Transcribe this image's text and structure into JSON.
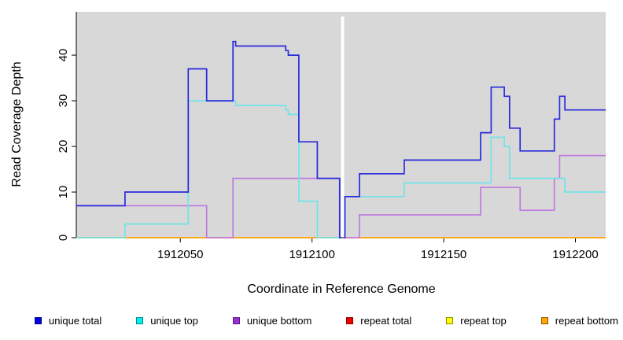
{
  "chart_data": {
    "type": "line",
    "step": true,
    "title": "",
    "xlabel": "Coordinate in Reference Genome",
    "ylabel": "Read Coverage Depth",
    "xlim": [
      1912010.5,
      1912211.5
    ],
    "ylim": [
      0,
      49.5
    ],
    "x_ticks": [
      1912050,
      1912100,
      1912150,
      1912200
    ],
    "y_ticks": [
      0,
      10,
      20,
      30,
      40
    ],
    "grid": false,
    "plot_bg": "#D8D8D8",
    "gap": {
      "from": 1912111,
      "to": 1912112.2,
      "note": "white no-data band"
    },
    "series": [
      {
        "name": "repeat-total",
        "label": "repeat total",
        "color": "#E03030",
        "sections": [
          [
            [
              1912010.5,
              0
            ],
            [
              1912111,
              0
            ]
          ],
          [
            [
              1912112.2,
              0
            ],
            [
              1912211.5,
              0
            ]
          ]
        ]
      },
      {
        "name": "repeat-top",
        "label": "repeat top",
        "color": "#F5F500",
        "sections": [
          [
            [
              1912010.5,
              0
            ],
            [
              1912111,
              0
            ]
          ],
          [
            [
              1912112.2,
              0
            ],
            [
              1912211.5,
              0
            ]
          ]
        ]
      },
      {
        "name": "repeat-bottom",
        "label": "repeat bottom",
        "color": "#FFA41E",
        "sections": [
          [
            [
              1912010.5,
              0
            ],
            [
              1912111,
              0
            ]
          ],
          [
            [
              1912112.2,
              0
            ],
            [
              1912211.5,
              0
            ]
          ]
        ]
      },
      {
        "name": "unique-bottom",
        "label": "unique bottom",
        "color": "#BE7CDE",
        "sections": [
          [
            [
              1912010.5,
              7
            ],
            [
              1912060,
              0
            ],
            [
              1912070,
              13
            ],
            [
              1912110.5,
              0
            ],
            [
              1912111,
              0
            ]
          ],
          [
            [
              1912112.2,
              0
            ],
            [
              1912118,
              5
            ],
            [
              1912164,
              11
            ],
            [
              1912179,
              6
            ],
            [
              1912192,
              13
            ],
            [
              1912194,
              18
            ],
            [
              1912211.5,
              18
            ]
          ]
        ]
      },
      {
        "name": "unique-top",
        "label": "unique top",
        "color": "#70E4E8",
        "sections": [
          [
            [
              1912010.5,
              0
            ],
            [
              1912029,
              3
            ],
            [
              1912053,
              30
            ],
            [
              1912071,
              29
            ],
            [
              1912090,
              28
            ],
            [
              1912091,
              27
            ],
            [
              1912095,
              8
            ],
            [
              1912102,
              0
            ],
            [
              1912111,
              0
            ]
          ],
          [
            [
              1912112.2,
              0
            ],
            [
              1912112.5,
              9
            ],
            [
              1912135,
              12
            ],
            [
              1912168,
              22
            ],
            [
              1912173,
              20
            ],
            [
              1912175,
              13
            ],
            [
              1912196,
              10
            ],
            [
              1912211.5,
              10
            ]
          ]
        ]
      },
      {
        "name": "unique-total",
        "label": "unique total",
        "color": "#2A2ADC",
        "sections": [
          [
            [
              1912010.5,
              7
            ],
            [
              1912029,
              10
            ],
            [
              1912053,
              37
            ],
            [
              1912060,
              30
            ],
            [
              1912070,
              43
            ],
            [
              1912071,
              42
            ],
            [
              1912090,
              41
            ],
            [
              1912091,
              40
            ],
            [
              1912095,
              21
            ],
            [
              1912102,
              13
            ],
            [
              1912110.5,
              0
            ],
            [
              1912111,
              0
            ]
          ],
          [
            [
              1912112.2,
              0
            ],
            [
              1912112.5,
              9
            ],
            [
              1912118,
              14
            ],
            [
              1912135,
              17
            ],
            [
              1912164,
              23
            ],
            [
              1912168,
              33
            ],
            [
              1912173,
              31
            ],
            [
              1912175,
              24
            ],
            [
              1912179,
              19
            ],
            [
              1912192,
              26
            ],
            [
              1912194,
              31
            ],
            [
              1912196,
              28
            ],
            [
              1912211.5,
              28
            ]
          ]
        ]
      }
    ],
    "legend": [
      {
        "label": "unique total",
        "color": "#0000E0",
        "border": "#00008B"
      },
      {
        "label": "unique top",
        "color": "#00EEEE",
        "border": "#008B8B"
      },
      {
        "label": "unique bottom",
        "color": "#9B30D0",
        "border": "#551A8B"
      },
      {
        "label": "repeat total",
        "color": "#EE0000",
        "border": "#8B0000"
      },
      {
        "label": "repeat top",
        "color": "#FFFF00",
        "border": "#8B8B00"
      },
      {
        "label": "repeat bottom",
        "color": "#FFA500",
        "border": "#8B5A00"
      }
    ]
  }
}
